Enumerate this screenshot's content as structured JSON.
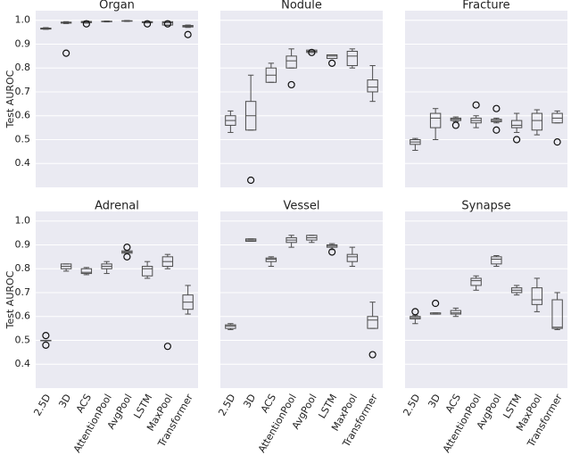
{
  "chart_data": [
    {
      "type": "box",
      "title": "Organ",
      "ylabel": "Test AUROC",
      "color": "#4d4d4d",
      "grid": true,
      "categories": [
        null,
        null,
        null,
        null,
        null,
        null,
        null,
        null
      ],
      "ylim": [
        0.3,
        1.04
      ],
      "yticks": [
        0.4,
        0.5,
        0.6,
        0.7,
        0.8,
        0.9,
        {
          "value": 1,
          "label": "1.0"
        }
      ],
      "boxes": [
        {
          "low": 0.962,
          "q1": 0.963,
          "median": 0.965,
          "q3": 0.967,
          "high": 0.969,
          "outliers": []
        },
        {
          "low": 0.986,
          "q1": 0.988,
          "median": 0.99,
          "q3": 0.992,
          "high": 0.994,
          "outliers": [
            0.862
          ]
        },
        {
          "low": 0.988,
          "q1": 0.99,
          "median": 0.992,
          "q3": 0.995,
          "high": 0.997,
          "outliers": [
            0.985
          ]
        },
        {
          "low": 0.993,
          "q1": 0.994,
          "median": 0.995,
          "q3": 0.996,
          "high": 0.997,
          "outliers": []
        },
        {
          "low": 0.995,
          "q1": 0.996,
          "median": 0.997,
          "q3": 0.998,
          "high": 0.999,
          "outliers": []
        },
        {
          "low": 0.989,
          "q1": 0.99,
          "median": 0.992,
          "q3": 0.994,
          "high": 0.996,
          "outliers": [
            0.985
          ]
        },
        {
          "low": 0.978,
          "q1": 0.98,
          "median": 0.99,
          "q3": 0.994,
          "high": 0.996,
          "outliers": [
            0.985
          ]
        },
        {
          "low": 0.97,
          "q1": 0.972,
          "median": 0.975,
          "q3": 0.978,
          "high": 0.98,
          "outliers": [
            0.94
          ]
        }
      ]
    },
    {
      "type": "box",
      "title": "Nodule",
      "color": "#4d4d4d",
      "grid": true,
      "categories": [
        null,
        null,
        null,
        null,
        null,
        null,
        null,
        null
      ],
      "ylim": [
        0.3,
        1.04
      ],
      "yticks": [
        0.4,
        0.5,
        0.6,
        0.7,
        0.8,
        0.9,
        1
      ],
      "boxes": [
        {
          "low": 0.53,
          "q1": 0.56,
          "median": 0.58,
          "q3": 0.6,
          "high": 0.62,
          "outliers": []
        },
        {
          "low": 0.54,
          "q1": 0.54,
          "median": 0.6,
          "q3": 0.66,
          "high": 0.77,
          "outliers": [
            0.33
          ]
        },
        {
          "low": 0.74,
          "q1": 0.74,
          "median": 0.77,
          "q3": 0.8,
          "high": 0.82,
          "outliers": []
        },
        {
          "low": 0.8,
          "q1": 0.8,
          "median": 0.83,
          "q3": 0.85,
          "high": 0.88,
          "outliers": [
            0.73
          ]
        },
        {
          "low": 0.865,
          "q1": 0.865,
          "median": 0.87,
          "q3": 0.875,
          "high": 0.875,
          "outliers": [
            0.865
          ]
        },
        {
          "low": 0.84,
          "q1": 0.84,
          "median": 0.85,
          "q3": 0.855,
          "high": 0.855,
          "outliers": [
            0.82
          ]
        },
        {
          "low": 0.8,
          "q1": 0.81,
          "median": 0.85,
          "q3": 0.87,
          "high": 0.88,
          "outliers": []
        },
        {
          "low": 0.66,
          "q1": 0.7,
          "median": 0.72,
          "q3": 0.75,
          "high": 0.81,
          "outliers": []
        }
      ]
    },
    {
      "type": "box",
      "title": "Fracture",
      "color": "#4d4d4d",
      "grid": true,
      "categories": [
        null,
        null,
        null,
        null,
        null,
        null,
        null,
        null
      ],
      "ylim": [
        0.3,
        1.04
      ],
      "yticks": [
        0.4,
        0.5,
        0.6,
        0.7,
        0.8,
        0.9,
        1
      ],
      "boxes": [
        {
          "low": 0.455,
          "q1": 0.48,
          "median": 0.49,
          "q3": 0.5,
          "high": 0.505,
          "outliers": []
        },
        {
          "low": 0.5,
          "q1": 0.55,
          "median": 0.59,
          "q3": 0.61,
          "high": 0.63,
          "outliers": []
        },
        {
          "low": 0.575,
          "q1": 0.58,
          "median": 0.585,
          "q3": 0.59,
          "high": 0.595,
          "outliers": [
            0.56
          ]
        },
        {
          "low": 0.55,
          "q1": 0.57,
          "median": 0.58,
          "q3": 0.59,
          "high": 0.6,
          "outliers": [
            0.645
          ]
        },
        {
          "low": 0.57,
          "q1": 0.575,
          "median": 0.58,
          "q3": 0.585,
          "high": 0.59,
          "outliers": [
            0.63,
            0.54
          ]
        },
        {
          "low": 0.53,
          "q1": 0.55,
          "median": 0.56,
          "q3": 0.58,
          "high": 0.61,
          "outliers": [
            0.5
          ]
        },
        {
          "low": 0.52,
          "q1": 0.54,
          "median": 0.58,
          "q3": 0.61,
          "high": 0.625,
          "outliers": []
        },
        {
          "low": 0.57,
          "q1": 0.57,
          "median": 0.59,
          "q3": 0.61,
          "high": 0.62,
          "outliers": [
            0.49
          ]
        }
      ]
    },
    {
      "type": "box",
      "title": "Adrenal",
      "ylabel": "Test AUROC",
      "color": "#4d4d4d",
      "grid": true,
      "categories": [
        "2.5D",
        "3D",
        "ACS",
        "AttentionPool",
        "AvgPool",
        "LSTM",
        "MaxPool",
        "Transformer"
      ],
      "ylim": [
        0.3,
        1.04
      ],
      "yticks": [
        0.4,
        0.5,
        0.6,
        0.7,
        0.8,
        0.9,
        {
          "value": 1,
          "label": "1.0"
        }
      ],
      "boxes": [
        {
          "low": 0.5,
          "q1": 0.5,
          "median": 0.5,
          "q3": 0.5,
          "high": 0.5,
          "outliers": [
            0.52,
            0.48
          ]
        },
        {
          "low": 0.79,
          "q1": 0.8,
          "median": 0.81,
          "q3": 0.82,
          "high": 0.82,
          "outliers": []
        },
        {
          "low": 0.775,
          "q1": 0.78,
          "median": 0.785,
          "q3": 0.8,
          "high": 0.805,
          "outliers": []
        },
        {
          "low": 0.78,
          "q1": 0.8,
          "median": 0.81,
          "q3": 0.82,
          "high": 0.83,
          "outliers": []
        },
        {
          "low": 0.865,
          "q1": 0.865,
          "median": 0.87,
          "q3": 0.875,
          "high": 0.875,
          "outliers": [
            0.89,
            0.85
          ]
        },
        {
          "low": 0.76,
          "q1": 0.77,
          "median": 0.8,
          "q3": 0.81,
          "high": 0.83,
          "outliers": []
        },
        {
          "low": 0.8,
          "q1": 0.81,
          "median": 0.83,
          "q3": 0.85,
          "high": 0.86,
          "outliers": [
            0.475
          ]
        },
        {
          "low": 0.61,
          "q1": 0.63,
          "median": 0.66,
          "q3": 0.69,
          "high": 0.73,
          "outliers": []
        }
      ]
    },
    {
      "type": "box",
      "title": "Vessel",
      "color": "#4d4d4d",
      "grid": true,
      "categories": [
        "2.5D",
        "3D",
        "ACS",
        "AttentionPool",
        "AvgPool",
        "LSTM",
        "MaxPool",
        "Transformer"
      ],
      "ylim": [
        0.3,
        1.04
      ],
      "yticks": [
        0.4,
        0.5,
        0.6,
        0.7,
        0.8,
        0.9,
        1
      ],
      "boxes": [
        {
          "low": 0.545,
          "q1": 0.55,
          "median": 0.56,
          "q3": 0.565,
          "high": 0.57,
          "outliers": []
        },
        {
          "low": 0.915,
          "q1": 0.915,
          "median": 0.92,
          "q3": 0.925,
          "high": 0.925,
          "outliers": []
        },
        {
          "low": 0.81,
          "q1": 0.83,
          "median": 0.84,
          "q3": 0.845,
          "high": 0.85,
          "outliers": []
        },
        {
          "low": 0.89,
          "q1": 0.91,
          "median": 0.92,
          "q3": 0.93,
          "high": 0.94,
          "outliers": []
        },
        {
          "low": 0.91,
          "q1": 0.92,
          "median": 0.93,
          "q3": 0.94,
          "high": 0.94,
          "outliers": []
        },
        {
          "low": 0.88,
          "q1": 0.89,
          "median": 0.895,
          "q3": 0.9,
          "high": 0.905,
          "outliers": [
            0.87
          ]
        },
        {
          "low": 0.81,
          "q1": 0.83,
          "median": 0.85,
          "q3": 0.86,
          "high": 0.89,
          "outliers": []
        },
        {
          "low": 0.55,
          "q1": 0.55,
          "median": 0.585,
          "q3": 0.6,
          "high": 0.66,
          "outliers": [
            0.44
          ]
        }
      ]
    },
    {
      "type": "box",
      "title": "Synapse",
      "color": "#4d4d4d",
      "grid": true,
      "categories": [
        "2.5D",
        "3D",
        "ACS",
        "AttentionPool",
        "AvgPool",
        "LSTM",
        "MaxPool",
        "Transformer"
      ],
      "ylim": [
        0.3,
        1.04
      ],
      "yticks": [
        0.4,
        0.5,
        0.6,
        0.7,
        0.8,
        0.9,
        1
      ],
      "boxes": [
        {
          "low": 0.57,
          "q1": 0.59,
          "median": 0.595,
          "q3": 0.6,
          "high": 0.605,
          "outliers": [
            0.62
          ]
        },
        {
          "low": 0.61,
          "q1": 0.61,
          "median": 0.61,
          "q3": 0.615,
          "high": 0.615,
          "outliers": [
            0.655
          ]
        },
        {
          "low": 0.6,
          "q1": 0.61,
          "median": 0.615,
          "q3": 0.625,
          "high": 0.635,
          "outliers": []
        },
        {
          "low": 0.71,
          "q1": 0.73,
          "median": 0.75,
          "q3": 0.76,
          "high": 0.77,
          "outliers": []
        },
        {
          "low": 0.81,
          "q1": 0.82,
          "median": 0.84,
          "q3": 0.85,
          "high": 0.855,
          "outliers": []
        },
        {
          "low": 0.69,
          "q1": 0.7,
          "median": 0.71,
          "q3": 0.72,
          "high": 0.73,
          "outliers": []
        },
        {
          "low": 0.62,
          "q1": 0.65,
          "median": 0.67,
          "q3": 0.72,
          "high": 0.76,
          "outliers": []
        },
        {
          "low": 0.545,
          "q1": 0.55,
          "median": 0.555,
          "q3": 0.67,
          "high": 0.7,
          "outliers": []
        }
      ]
    }
  ]
}
